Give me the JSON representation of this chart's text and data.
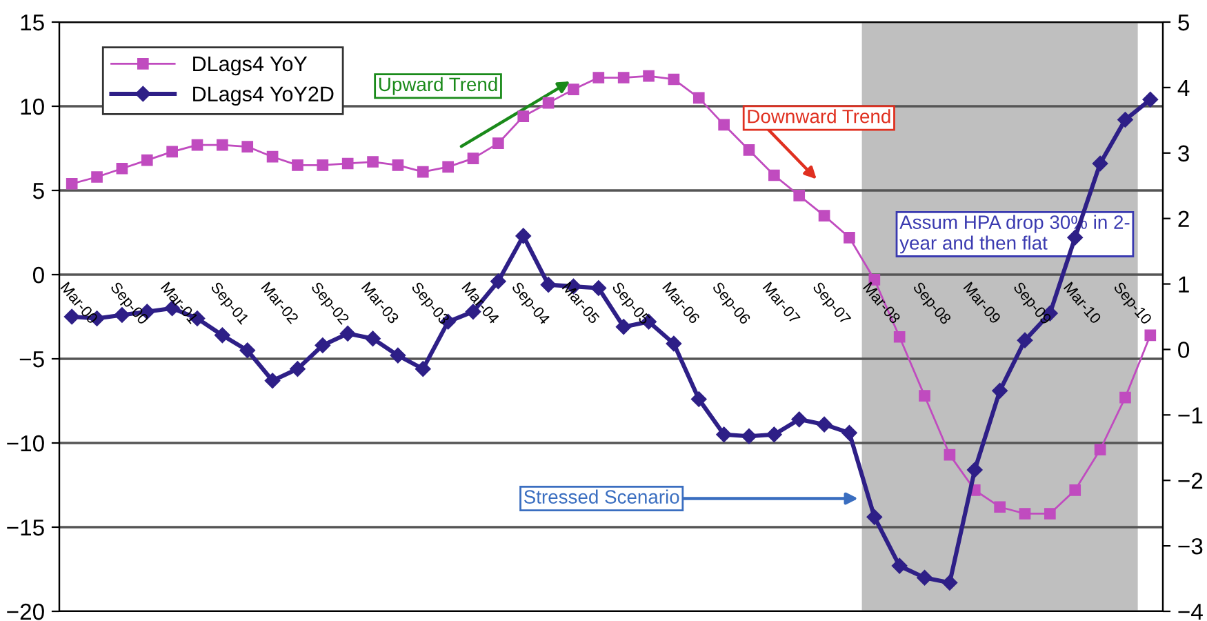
{
  "chart_data": {
    "type": "line",
    "categories": [
      "Mar-00",
      null,
      "Sep-00",
      null,
      "Mar-01",
      null,
      "Sep-01",
      null,
      "Mar-02",
      null,
      "Sep-02",
      null,
      "Mar-03",
      null,
      "Sep-03",
      null,
      "Mar-04",
      null,
      "Sep-04",
      null,
      "Mar-05",
      null,
      "Sep-05",
      null,
      "Mar-06",
      null,
      "Sep-06",
      null,
      "Mar-07",
      null,
      "Sep-07",
      null,
      "Mar-08",
      null,
      "Sep-08",
      null,
      "Mar-09",
      null,
      "Sep-09",
      null,
      "Mar-10",
      null,
      "Sep-10",
      null
    ],
    "series": [
      {
        "name": "DLags4 YoY",
        "color": "#c04bbf",
        "marker": "square",
        "values": [
          5.4,
          5.8,
          6.3,
          6.8,
          7.3,
          7.7,
          7.7,
          7.6,
          7.0,
          6.5,
          6.5,
          6.6,
          6.7,
          6.5,
          6.1,
          6.4,
          6.9,
          7.8,
          9.4,
          10.2,
          11.0,
          11.7,
          11.7,
          11.8,
          11.6,
          10.5,
          8.9,
          7.4,
          5.9,
          4.7,
          3.5,
          2.2,
          -0.3,
          -3.7,
          -7.2,
          -10.7,
          -12.8,
          -13.8,
          -14.2,
          -14.2,
          -12.8,
          -10.4,
          -7.3,
          -3.6
        ]
      },
      {
        "name": "DLags4 YoY2D",
        "color": "#2e1f87",
        "marker": "diamond",
        "values": [
          -2.5,
          -2.6,
          -2.4,
          -2.2,
          -2.0,
          -2.6,
          -3.6,
          -4.5,
          -6.3,
          -5.6,
          -4.2,
          -3.5,
          -3.8,
          -4.8,
          -5.6,
          -2.8,
          -2.2,
          -0.4,
          2.3,
          -0.6,
          -0.7,
          -0.8,
          -3.1,
          -2.8,
          -4.1,
          -7.4,
          -9.5,
          -9.6,
          -9.5,
          -8.6,
          -8.9,
          -9.4,
          -14.4,
          -17.3,
          -18.0,
          -18.3,
          -11.6,
          -6.9,
          -3.9,
          -2.3,
          2.2,
          6.6,
          9.2,
          10.4
        ]
      }
    ],
    "ylim": [
      -20,
      15
    ],
    "yticks": [
      -20,
      -15,
      -10,
      -5,
      0,
      5,
      10,
      15
    ],
    "y2lim": [
      -4,
      5
    ],
    "y2ticks": [
      -4,
      -3,
      -2,
      -1,
      0,
      1,
      2,
      3,
      4,
      5
    ],
    "bands": [
      {
        "axis": "x",
        "from": "Mar-08",
        "to": "Sep-10",
        "color": "#bfbfbf"
      }
    ],
    "annotations": [
      "Upward Trend",
      "Downward Trend",
      "Assum HPA drop 30% in 2-\nyear and then flat",
      "Stressed Scenario"
    ],
    "grid": true,
    "legend": "top left",
    "line_style": "solid"
  }
}
